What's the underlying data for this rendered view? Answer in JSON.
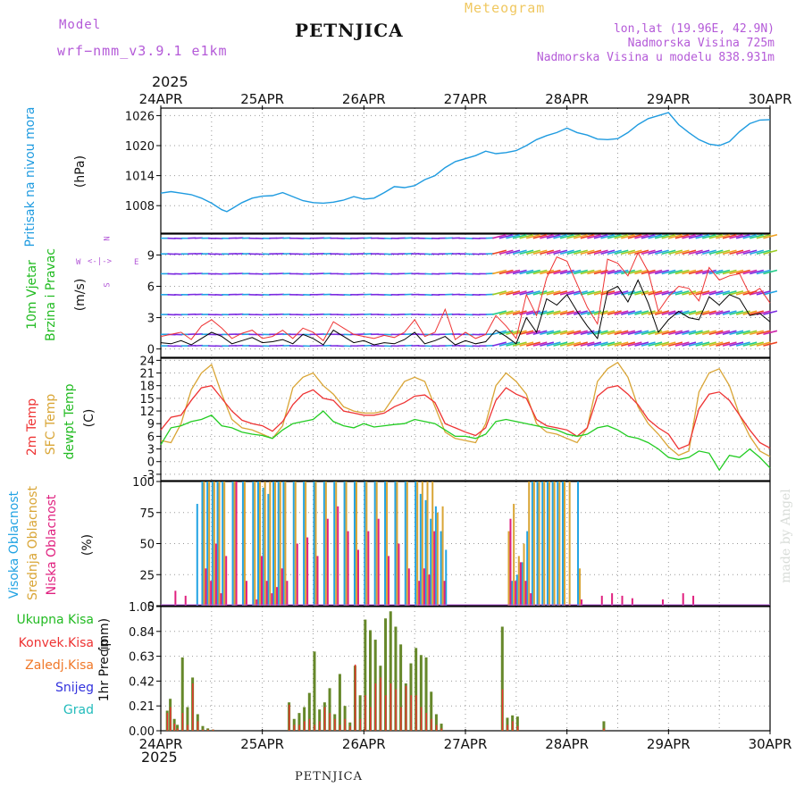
{
  "header": {
    "model_label": "Model",
    "model_name": "wrf−nmm_v3.9.1  e1km",
    "location": "PETNJICA",
    "meteogram": "Meteogram",
    "coords": "lon,lat (19.96E, 42.9N)",
    "elevation": "Nadmorska Visina 725m",
    "model_elevation": "Nadmorska Visina u modelu 838.931m",
    "year_top": "2025",
    "year_bottom": "2025",
    "footer": "PETNJICA",
    "credit": "made by Angel"
  },
  "colors": {
    "pressure": "#1f9be0",
    "t2m": "#ee3333",
    "sfc": "#d9a535",
    "dewpt": "#22cc22",
    "high_cloud": "#22a3e3",
    "mid_cloud": "#d9a535",
    "low_cloud": "#e0207f",
    "total_precip": "#66882a",
    "conv_precip": "#ee3333",
    "wind_obs": "#ee3333",
    "wind_speed": "#000000"
  },
  "chart_data": [
    {
      "type": "line",
      "panel": "pressure",
      "ylabel_main": "Pritisak na nivou mora",
      "ylabel_unit": "(hPa)",
      "yticks": [
        1008,
        1014,
        1020,
        1026
      ],
      "ylim": [
        1002.5,
        1027.5
      ],
      "x_days": [
        0,
        0.1,
        0.2,
        0.3,
        0.4,
        0.5,
        0.6,
        0.65,
        0.7,
        0.8,
        0.9,
        1.0,
        1.1,
        1.2,
        1.3,
        1.4,
        1.5,
        1.6,
        1.7,
        1.8,
        1.9,
        2.0,
        2.1,
        2.2,
        2.3,
        2.4,
        2.5,
        2.6,
        2.7,
        2.8,
        2.9,
        3.0,
        3.1,
        3.2,
        3.3,
        3.4,
        3.5,
        3.6,
        3.7,
        3.8,
        3.9,
        4.0,
        4.1,
        4.2,
        4.3,
        4.4,
        4.5,
        4.6,
        4.7,
        4.8,
        4.9,
        5.0,
        5.1,
        5.2,
        5.3,
        5.4,
        5.5,
        5.6,
        5.7,
        5.8,
        5.9,
        6.0
      ],
      "series": [
        {
          "values": [
            1010.5,
            1010.8,
            1010.5,
            1010.2,
            1009.5,
            1008.5,
            1007.2,
            1006.8,
            1007.4,
            1008.6,
            1009.5,
            1009.9,
            1010.0,
            1010.6,
            1009.8,
            1009.0,
            1008.6,
            1008.5,
            1008.7,
            1009.1,
            1009.8,
            1009.3,
            1009.5,
            1010.6,
            1011.8,
            1011.6,
            1012.0,
            1013.2,
            1014.0,
            1015.6,
            1016.8,
            1017.4,
            1018.0,
            1018.9,
            1018.4,
            1018.6,
            1019.0,
            1020.0,
            1021.2,
            1022.0,
            1022.6,
            1023.5,
            1022.6,
            1022.1,
            1021.3,
            1021.2,
            1021.4,
            1022.6,
            1024.2,
            1025.4,
            1026.0,
            1026.6,
            1024.2,
            1022.6,
            1021.2,
            1020.3,
            1020.0,
            1020.8,
            1022.8,
            1024.4,
            1025.1,
            1025.2
          ]
        }
      ]
    },
    {
      "type": "line",
      "panel": "wind",
      "ylabel_main": "10m Vjetar",
      "ylabel_sub": "Brzina i Pravac",
      "ylabel_unit": "(m/s)",
      "compass": "N,E,S,W",
      "yticks": [
        0,
        3,
        6,
        9
      ],
      "ylim": [
        -0.8,
        11
      ],
      "x_days": [
        0,
        0.1,
        0.2,
        0.3,
        0.4,
        0.5,
        0.6,
        0.7,
        0.8,
        0.9,
        1.0,
        1.1,
        1.2,
        1.3,
        1.4,
        1.5,
        1.6,
        1.7,
        1.8,
        1.9,
        2.0,
        2.1,
        2.2,
        2.3,
        2.4,
        2.5,
        2.6,
        2.7,
        2.8,
        2.9,
        3.0,
        3.1,
        3.2,
        3.3,
        3.4,
        3.5,
        3.6,
        3.7,
        3.8,
        3.9,
        4.0,
        4.1,
        4.2,
        4.3,
        4.4,
        4.5,
        4.6,
        4.7,
        4.8,
        4.9,
        5.0,
        5.1,
        5.2,
        5.3,
        5.4,
        5.5,
        5.6,
        5.7,
        5.8,
        5.9,
        6.0
      ],
      "series": [
        {
          "name": "speed",
          "values": [
            0.6,
            0.5,
            0.8,
            0.4,
            1.0,
            1.6,
            1.2,
            0.5,
            0.8,
            1.1,
            0.6,
            0.7,
            0.9,
            0.5,
            1.4,
            1.0,
            0.4,
            1.8,
            1.2,
            0.6,
            0.8,
            0.4,
            0.6,
            0.5,
            0.9,
            1.6,
            0.5,
            0.8,
            1.2,
            0.4,
            0.8,
            0.5,
            0.7,
            1.8,
            1.2,
            0.5,
            3.0,
            1.6,
            4.8,
            4.2,
            5.2,
            3.6,
            2.2,
            1.0,
            5.5,
            6.0,
            4.5,
            6.6,
            4.4,
            1.6,
            2.8,
            3.6,
            3.0,
            2.8,
            5.0,
            4.2,
            5.2,
            4.8,
            3.2,
            3.4,
            2.6
          ]
        },
        {
          "name": "gust",
          "values": [
            1.2,
            1.4,
            1.6,
            0.9,
            2.2,
            2.8,
            2.0,
            1.0,
            1.5,
            1.8,
            1.0,
            1.2,
            1.8,
            1.0,
            2.0,
            1.6,
            0.8,
            2.6,
            2.0,
            1.4,
            1.2,
            1.0,
            1.3,
            1.1,
            1.6,
            2.8,
            1.2,
            1.6,
            3.8,
            0.9,
            1.6,
            1.0,
            1.4,
            3.2,
            2.2,
            1.0,
            5.2,
            3.2,
            6.8,
            8.8,
            8.4,
            6.2,
            4.0,
            2.4,
            8.6,
            8.2,
            7.0,
            9.2,
            7.4,
            3.6,
            5.0,
            6.0,
            5.8,
            4.6,
            7.8,
            6.6,
            7.0,
            7.2,
            5.2,
            5.8,
            4.4
          ]
        }
      ]
    },
    {
      "type": "line",
      "panel": "temperature",
      "ylabel_t2m": "2m Temp",
      "ylabel_sfc": "SFC Temp",
      "ylabel_dew": "dewpt Temp",
      "ylabel_unit": "(C)",
      "yticks": [
        -3,
        0,
        3,
        6,
        9,
        12,
        15,
        18,
        21,
        24
      ],
      "ylim": [
        -4.5,
        24.5
      ],
      "x_days": [
        0,
        0.1,
        0.2,
        0.3,
        0.4,
        0.5,
        0.6,
        0.7,
        0.8,
        0.9,
        1.0,
        1.1,
        1.2,
        1.3,
        1.4,
        1.5,
        1.6,
        1.7,
        1.8,
        1.9,
        2.0,
        2.1,
        2.2,
        2.3,
        2.4,
        2.5,
        2.6,
        2.7,
        2.8,
        2.9,
        3.0,
        3.1,
        3.2,
        3.3,
        3.4,
        3.5,
        3.6,
        3.7,
        3.8,
        3.9,
        4.0,
        4.1,
        4.2,
        4.3,
        4.4,
        4.5,
        4.6,
        4.7,
        4.8,
        4.9,
        5.0,
        5.1,
        5.2,
        5.3,
        5.4,
        5.5,
        5.6,
        5.7,
        5.8,
        5.9,
        6.0
      ],
      "series": [
        {
          "name": "2m Temp",
          "values": [
            7.5,
            10.5,
            11.0,
            14.5,
            17.5,
            18.0,
            15.0,
            12.0,
            9.8,
            9.0,
            8.5,
            7.2,
            9.5,
            13.5,
            16.0,
            17.0,
            15.0,
            14.5,
            12.0,
            11.5,
            11.0,
            11.0,
            11.5,
            13.0,
            14.0,
            15.5,
            15.8,
            14.0,
            9.0,
            8.0,
            7.0,
            6.2,
            8.0,
            14.5,
            17.5,
            16.0,
            15.0,
            10.0,
            8.5,
            8.0,
            7.5,
            6.0,
            8.0,
            15.5,
            17.5,
            18.0,
            16.0,
            13.5,
            10.0,
            8.0,
            6.5,
            3.0,
            4.0,
            12.5,
            16.0,
            16.5,
            14.5,
            11.0,
            7.5,
            4.5,
            3.2
          ]
        },
        {
          "name": "SFC Temp",
          "values": [
            5.0,
            4.5,
            9.0,
            17.0,
            21.0,
            23.0,
            16.0,
            10.0,
            8.0,
            7.5,
            6.5,
            5.5,
            8.5,
            17.5,
            20.0,
            21.0,
            18.0,
            16.0,
            13.0,
            12.0,
            11.5,
            11.5,
            12.0,
            15.5,
            19.0,
            20.0,
            19.0,
            13.0,
            7.0,
            5.5,
            5.0,
            4.5,
            9.0,
            18.0,
            21.0,
            19.0,
            16.0,
            9.0,
            7.0,
            6.5,
            5.5,
            4.5,
            8.0,
            19.0,
            22.0,
            23.5,
            20.0,
            13.0,
            9.0,
            6.5,
            3.5,
            1.5,
            2.5,
            16.5,
            21.0,
            22.0,
            18.0,
            11.0,
            6.0,
            2.5,
            1.2
          ]
        },
        {
          "name": "dewpt Temp",
          "values": [
            4.0,
            8.0,
            8.5,
            9.5,
            10.0,
            11.0,
            8.5,
            8.0,
            7.0,
            6.5,
            6.2,
            5.5,
            7.5,
            9.0,
            9.5,
            10.0,
            12.0,
            9.5,
            8.5,
            8.0,
            9.0,
            8.2,
            8.5,
            8.8,
            9.0,
            10.0,
            9.5,
            9.0,
            7.5,
            6.0,
            6.0,
            5.5,
            6.5,
            9.5,
            10.0,
            9.5,
            9.0,
            8.5,
            8.0,
            7.5,
            6.5,
            6.0,
            6.5,
            8.0,
            8.5,
            7.5,
            6.0,
            5.5,
            4.5,
            3.0,
            1.0,
            0.5,
            1.0,
            2.5,
            2.0,
            -2.0,
            1.5,
            1.0,
            3.0,
            1.0,
            -1.5
          ]
        }
      ]
    },
    {
      "type": "bar",
      "panel": "clouds",
      "ylabel_high": "Visoka Oblacnost",
      "ylabel_mid": "Srednja Oblacnost",
      "ylabel_low": "Niska Oblacnost",
      "ylabel_unit": "(%)",
      "yticks": [
        0,
        25,
        50,
        75,
        100
      ],
      "ylim": [
        0,
        100
      ],
      "x_days": [
        0.1,
        0.2,
        0.3,
        0.35,
        0.4,
        0.45,
        0.5,
        0.55,
        0.6,
        0.7,
        0.8,
        0.9,
        0.95,
        1.0,
        1.05,
        1.1,
        1.15,
        1.2,
        1.3,
        1.4,
        1.5,
        1.6,
        1.7,
        1.8,
        1.9,
        2.0,
        2.1,
        2.2,
        2.3,
        2.4,
        2.5,
        2.55,
        2.6,
        2.65,
        2.7,
        2.75,
        2.8,
        3.35,
        3.4,
        3.45,
        3.5,
        3.55,
        3.6,
        3.65,
        3.7,
        3.75,
        3.8,
        3.85,
        3.9,
        3.95,
        4.0,
        4.05,
        4.1,
        4.3,
        4.4,
        4.5,
        4.6,
        4.9,
        5.1,
        5.2
      ],
      "series": [
        {
          "name": "Visoka Oblacnost",
          "values": [
            0,
            0,
            0,
            82,
            100,
            100,
            100,
            100,
            100,
            100,
            100,
            100,
            100,
            95,
            90,
            100,
            100,
            100,
            100,
            100,
            100,
            100,
            100,
            100,
            100,
            100,
            100,
            100,
            100,
            100,
            100,
            90,
            85,
            70,
            80,
            60,
            45,
            0,
            0,
            20,
            25,
            35,
            60,
            100,
            100,
            100,
            100,
            100,
            100,
            100,
            0,
            0,
            100,
            0,
            0,
            0,
            0,
            0,
            0,
            0
          ]
        },
        {
          "name": "Srednja Oblacnost",
          "values": [
            0,
            0,
            0,
            0,
            100,
            100,
            100,
            100,
            100,
            100,
            100,
            100,
            100,
            100,
            100,
            100,
            100,
            100,
            100,
            100,
            100,
            100,
            100,
            100,
            100,
            100,
            100,
            100,
            100,
            100,
            100,
            100,
            100,
            100,
            75,
            80,
            0,
            0,
            60,
            82,
            40,
            50,
            100,
            100,
            100,
            100,
            100,
            100,
            100,
            100,
            100,
            0,
            30,
            0,
            0,
            0,
            0,
            0,
            0,
            0
          ]
        },
        {
          "name": "Niska Oblacnost",
          "values": [
            12,
            8,
            0,
            0,
            30,
            20,
            50,
            10,
            40,
            100,
            20,
            5,
            40,
            20,
            10,
            15,
            30,
            20,
            50,
            55,
            40,
            70,
            80,
            60,
            45,
            60,
            70,
            40,
            50,
            30,
            20,
            30,
            25,
            60,
            0,
            20,
            0,
            0,
            70,
            20,
            35,
            20,
            10,
            0,
            0,
            0,
            0,
            0,
            0,
            0,
            0,
            0,
            5,
            8,
            10,
            8,
            6,
            5,
            10,
            8
          ]
        }
      ]
    },
    {
      "type": "bar",
      "panel": "precipitation",
      "ylabel_main": "1hr Precip",
      "ylabel_unit": "(mm)",
      "legend": [
        "Ukupna Kisa",
        "Konvek.Kisa",
        "Zaledj.Kisa",
        "Snijeg",
        "Grad"
      ],
      "yticks": [
        0,
        0.21,
        0.42,
        0.63,
        0.84,
        1.05
      ],
      "ylim": [
        0,
        1.05
      ],
      "x_days": [
        0.05,
        0.08,
        0.12,
        0.15,
        0.2,
        0.25,
        0.3,
        0.35,
        0.4,
        0.45,
        0.5,
        1.25,
        1.3,
        1.35,
        1.4,
        1.45,
        1.5,
        1.55,
        1.6,
        1.65,
        1.7,
        1.75,
        1.8,
        1.85,
        1.9,
        1.95,
        2.0,
        2.05,
        2.1,
        2.15,
        2.2,
        2.25,
        2.3,
        2.35,
        2.4,
        2.45,
        2.5,
        2.55,
        2.6,
        2.65,
        2.7,
        2.75,
        3.35,
        3.4,
        3.45,
        3.5,
        4.35
      ],
      "series": [
        {
          "name": "Ukupna Kisa",
          "values": [
            0.17,
            0.27,
            0.1,
            0.05,
            0.62,
            0.2,
            0.45,
            0.14,
            0.04,
            0.02,
            0.01,
            0.24,
            0.1,
            0.15,
            0.2,
            0.32,
            0.67,
            0.18,
            0.24,
            0.36,
            0.14,
            0.48,
            0.21,
            0.07,
            0.55,
            0.3,
            0.94,
            0.85,
            0.77,
            0.55,
            0.95,
            1.01,
            0.88,
            0.73,
            0.4,
            0.57,
            0.7,
            0.64,
            0.62,
            0.33,
            0.14,
            0.06,
            0.88,
            0.11,
            0.13,
            0.12,
            0.08
          ]
        },
        {
          "name": "Konvek.Kisa",
          "values": [
            0.15,
            0.2,
            0.06,
            0.02,
            0.15,
            0.05,
            0.4,
            0.08,
            0.01,
            0.01,
            0.01,
            0.22,
            0.05,
            0.05,
            0.08,
            0.1,
            0.05,
            0.08,
            0.2,
            0.15,
            0.1,
            0.05,
            0.1,
            0.04,
            0.56,
            0.1,
            0.3,
            0.2,
            0.4,
            0.45,
            0.3,
            0.4,
            0.35,
            0.2,
            0.38,
            0.3,
            0.3,
            0.2,
            0.15,
            0.1,
            0.05,
            0.02,
            0.35,
            0.05,
            0.08,
            0.04,
            0.02
          ]
        }
      ]
    }
  ],
  "axis": {
    "date_labels": [
      "24APR",
      "25APR",
      "26APR",
      "27APR",
      "28APR",
      "29APR",
      "30APR"
    ]
  }
}
